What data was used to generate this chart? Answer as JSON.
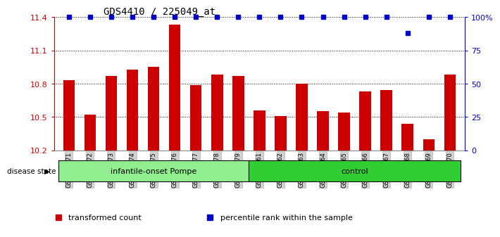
{
  "title": "GDS4410 / 225049_at",
  "samples": [
    "GSM947471",
    "GSM947472",
    "GSM947473",
    "GSM947474",
    "GSM947475",
    "GSM947476",
    "GSM947477",
    "GSM947478",
    "GSM947479",
    "GSM947461",
    "GSM947462",
    "GSM947463",
    "GSM947464",
    "GSM947465",
    "GSM947466",
    "GSM947467",
    "GSM947468",
    "GSM947469",
    "GSM947470"
  ],
  "bar_values": [
    10.83,
    10.52,
    10.87,
    10.93,
    10.95,
    11.33,
    10.79,
    10.88,
    10.87,
    10.56,
    10.51,
    10.8,
    10.55,
    10.54,
    10.73,
    10.74,
    10.44,
    10.3,
    10.88
  ],
  "percentile_values": [
    100,
    100,
    100,
    100,
    100,
    100,
    100,
    100,
    100,
    100,
    100,
    100,
    100,
    100,
    100,
    100,
    88,
    100,
    100
  ],
  "bar_color": "#cc0000",
  "percentile_color": "#0000cc",
  "ylim_left": [
    10.2,
    11.4
  ],
  "ylim_right": [
    0,
    100
  ],
  "yticks_left": [
    10.2,
    10.5,
    10.8,
    11.1,
    11.4
  ],
  "yticks_right": [
    0,
    25,
    50,
    75,
    100
  ],
  "groups": [
    {
      "label": "infantile-onset Pompe",
      "start": 0,
      "end": 9,
      "color": "#90ee90"
    },
    {
      "label": "control",
      "start": 9,
      "end": 19,
      "color": "#32cd32"
    }
  ],
  "group_label_prefix": "disease state",
  "legend_items": [
    {
      "label": "transformed count",
      "color": "#cc0000"
    },
    {
      "label": "percentile rank within the sample",
      "color": "#0000cc"
    }
  ],
  "tick_color_left": "#cc0000",
  "tick_color_right": "#0000cc"
}
